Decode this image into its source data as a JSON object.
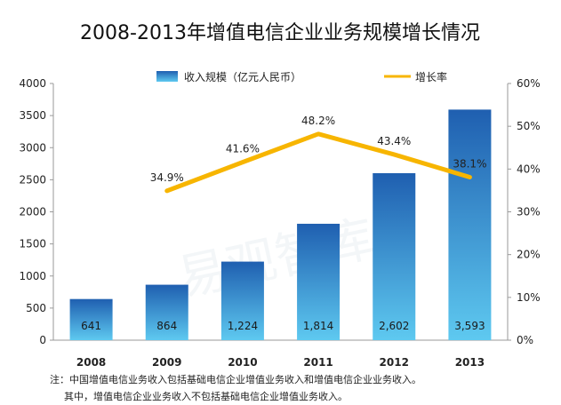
{
  "chart_data": {
    "type": "bar",
    "title": "2008-2013年增值电信企业业务规模增长情况",
    "categories": [
      "2008",
      "2009",
      "2010",
      "2011",
      "2012",
      "2013"
    ],
    "series": [
      {
        "name": "收入规模（亿元人民币）",
        "type": "bar",
        "axis": "left",
        "values": [
          641,
          864,
          1224,
          1814,
          2602,
          3593
        ],
        "labels": [
          "641",
          "864",
          "1,224",
          "1,814",
          "2,602",
          "3,593"
        ]
      },
      {
        "name": "增长率",
        "type": "line",
        "axis": "right",
        "values": [
          null,
          34.9,
          41.6,
          48.2,
          43.4,
          38.1
        ],
        "labels": [
          "",
          "34.9%",
          "41.6%",
          "48.2%",
          "43.4%",
          "38.1%"
        ]
      }
    ],
    "ylim": [
      0,
      4000
    ],
    "y_ticks": [
      "0",
      "500",
      "1000",
      "1500",
      "2000",
      "2500",
      "3000",
      "3500",
      "4000"
    ],
    "y2lim": [
      0,
      60
    ],
    "y2_ticks": [
      "0%",
      "10%",
      "20%",
      "30%",
      "40%",
      "50%",
      "60%"
    ],
    "legend_position": "top",
    "grid": false
  },
  "colors": {
    "bar_top": "#1f5fb0",
    "bar_bottom": "#5ec9f0",
    "line": "#f7b500"
  },
  "notes": [
    "注：中国增值电信业务收入包括基础电信企业增值业务收入和增值电信企业业务收入。",
    "其中，增值电信企业业务收入不包括基础电信企业增值业务收入。"
  ],
  "watermark": "易观智库"
}
